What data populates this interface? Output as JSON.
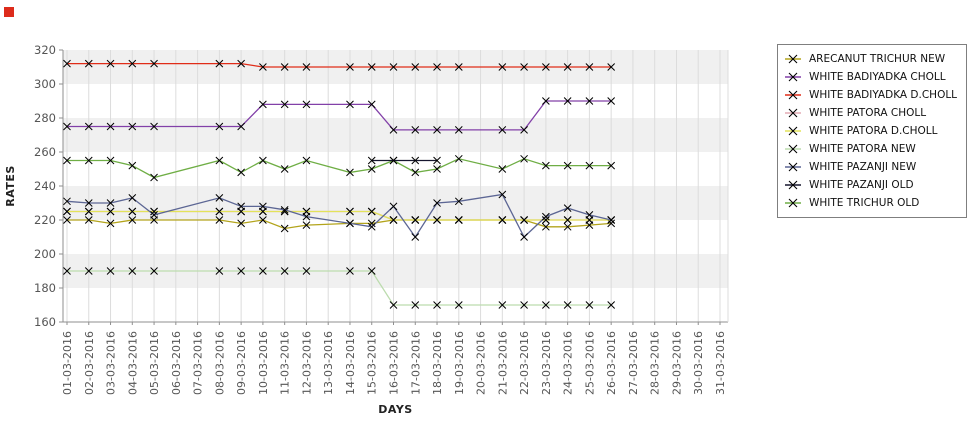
{
  "page": {
    "corner_marker_color": "#dd2b1b"
  },
  "chart_data": {
    "type": "line",
    "title": "",
    "xlabel": "DAYS",
    "ylabel": "RATES",
    "ylim": [
      160,
      320
    ],
    "y_ticks": [
      160,
      180,
      200,
      220,
      240,
      260,
      280,
      300,
      320
    ],
    "shaded_bands": [
      [
        180,
        200
      ],
      [
        220,
        240
      ],
      [
        260,
        280
      ],
      [
        300,
        320
      ]
    ],
    "band_color": "#f0f0f0",
    "grid_color": "#dcdcdc",
    "axis_color": "#8f8f8f",
    "tick_label_color": "#555555",
    "marker": "x",
    "marker_color": "#000000",
    "legend_position": "right",
    "x_labels": [
      "01-03-2016",
      "02-03-2016",
      "03-03-2016",
      "04-03-2016",
      "05-03-2016",
      "06-03-2016",
      "07-03-2016",
      "08-03-2016",
      "09-03-2016",
      "10-03-2016",
      "11-03-2016",
      "12-03-2016",
      "13-03-2016",
      "14-03-2016",
      "15-03-2016",
      "16-03-2016",
      "17-03-2016",
      "18-03-2016",
      "19-03-2016",
      "20-03-2016",
      "21-03-2016",
      "22-03-2016",
      "23-03-2016",
      "24-03-2016",
      "25-03-2016",
      "26-03-2016",
      "27-03-2016",
      "28-03-2016",
      "29-03-2016",
      "30-03-2016",
      "31-03-2016"
    ],
    "data_days": [
      1,
      2,
      3,
      4,
      5,
      8,
      9,
      10,
      11,
      12,
      14,
      15,
      16,
      17,
      18,
      19,
      21,
      22,
      23,
      24,
      25,
      26
    ],
    "series": [
      {
        "name": "ARECANUT TRICHUR NEW",
        "color": "#b3a41c",
        "values": [
          220,
          220,
          218,
          220,
          220,
          220,
          218,
          220,
          215,
          217,
          218,
          218,
          220,
          220,
          220,
          220,
          220,
          220,
          216,
          216,
          217,
          218
        ]
      },
      {
        "name": "WHITE BADIYADKA CHOLL",
        "color": "#8240a8",
        "values": [
          275,
          275,
          275,
          275,
          275,
          275,
          275,
          288,
          288,
          288,
          288,
          288,
          273,
          273,
          273,
          273,
          273,
          273,
          290,
          290,
          290,
          290
        ]
      },
      {
        "name": "WHITE BADIYADKA D.CHOLL",
        "color": "#e02c18",
        "values": [
          312,
          312,
          312,
          312,
          312,
          312,
          312,
          310,
          310,
          310,
          310,
          310,
          310,
          310,
          310,
          310,
          310,
          310,
          310,
          310,
          310,
          310
        ]
      },
      {
        "name": "WHITE PATORA CHOLL",
        "color": "#e3aab4",
        "values": [
          225,
          225,
          225,
          225,
          225,
          225,
          225,
          225,
          225,
          225,
          225,
          225,
          220,
          220,
          220,
          220,
          220,
          220,
          220,
          220,
          220,
          220
        ]
      },
      {
        "name": "WHITE PATORA D.CHOLL",
        "color": "#e3e35a",
        "values": [
          225,
          225,
          225,
          225,
          225,
          225,
          225,
          225,
          225,
          225,
          225,
          225,
          220,
          220,
          220,
          220,
          220,
          220,
          220,
          220,
          220,
          220
        ]
      },
      {
        "name": "WHITE PATORA NEW",
        "color": "#bcdcae",
        "values": [
          190,
          190,
          190,
          190,
          190,
          190,
          190,
          190,
          190,
          190,
          190,
          190,
          170,
          170,
          170,
          170,
          170,
          170,
          170,
          170,
          170,
          170
        ]
      },
      {
        "name": "WHITE PAZANJI NEW",
        "color": "#5c6694",
        "values": [
          231,
          230,
          230,
          233,
          223,
          233,
          228,
          228,
          226,
          222,
          218,
          216,
          228,
          210,
          230,
          231,
          235,
          210,
          222,
          227,
          223,
          220
        ]
      },
      {
        "name": "WHITE PAZANJI OLD",
        "color": "#16162e",
        "values": [
          null,
          null,
          null,
          null,
          null,
          null,
          null,
          null,
          null,
          null,
          null,
          255,
          255,
          255,
          255,
          null,
          null,
          null,
          null,
          null,
          null,
          null
        ]
      },
      {
        "name": "WHITE TRICHUR OLD",
        "color": "#6fae45",
        "values": [
          255,
          255,
          255,
          252,
          245,
          255,
          248,
          255,
          250,
          255,
          248,
          250,
          255,
          248,
          250,
          256,
          250,
          256,
          252,
          252,
          252,
          252
        ]
      }
    ],
    "draw_order": [
      3,
      0,
      4,
      5,
      6,
      8,
      1,
      2,
      7
    ]
  }
}
